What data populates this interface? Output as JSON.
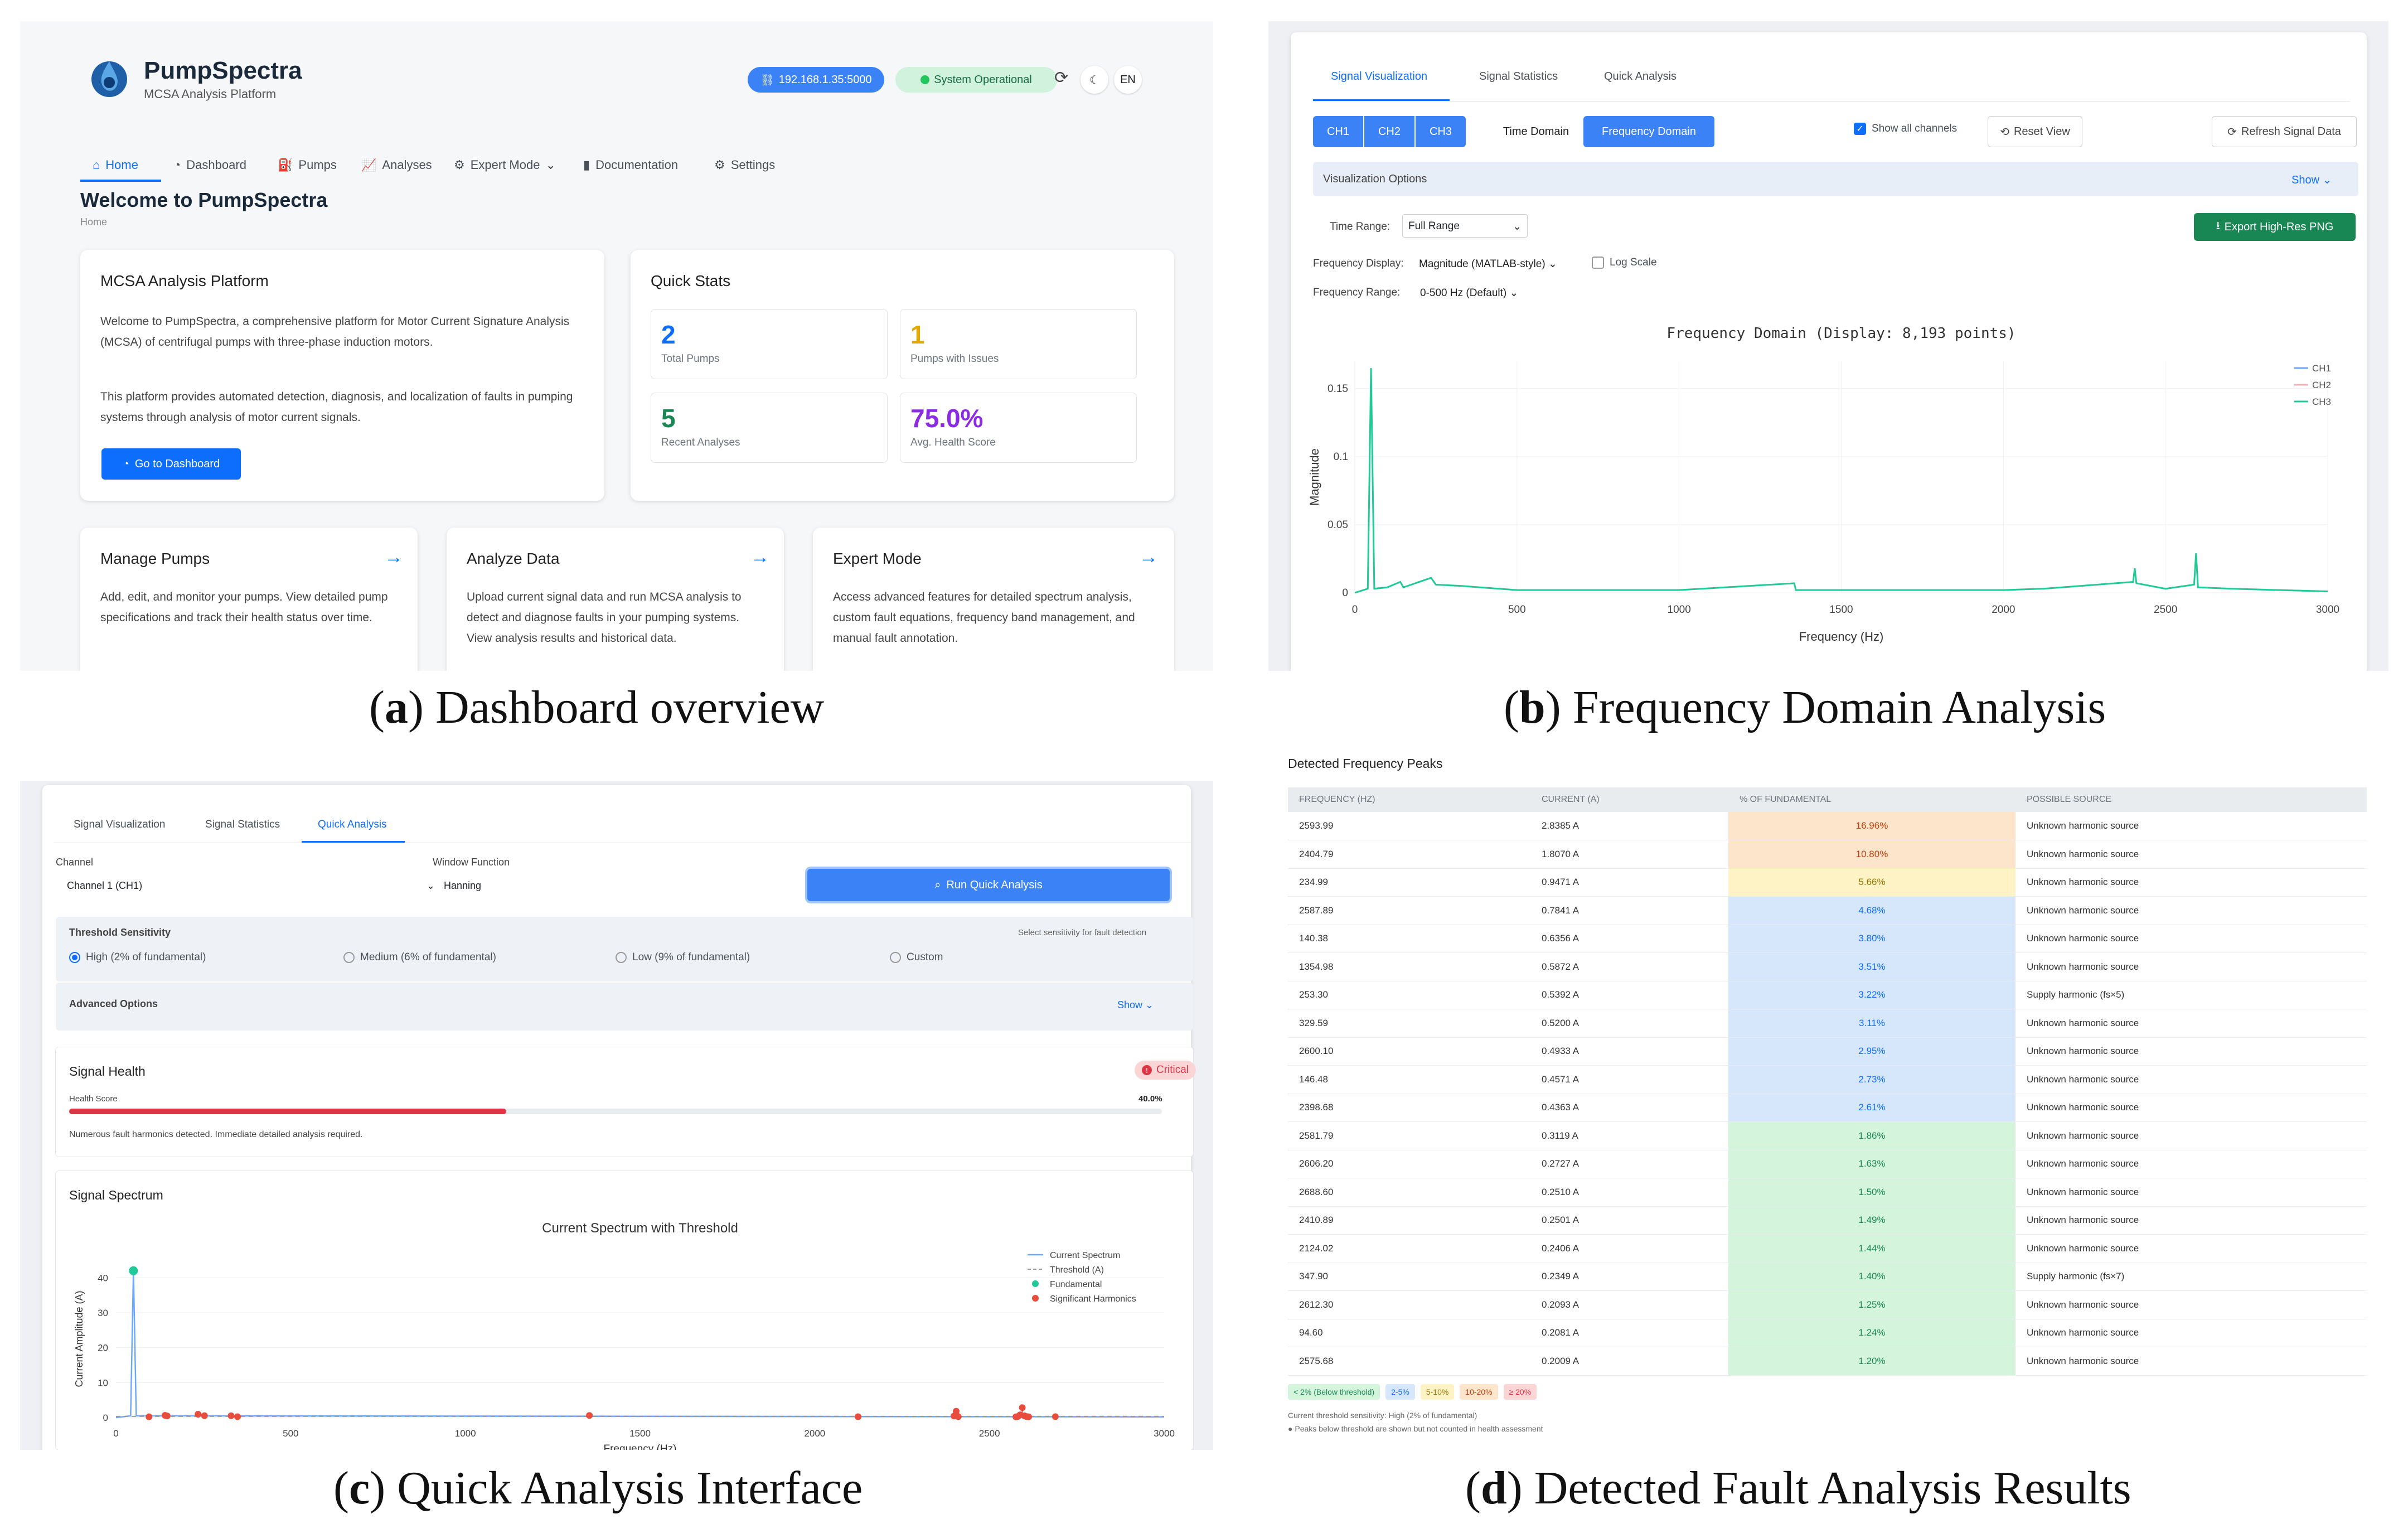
{
  "captions": {
    "a": {
      "letter": "a",
      "text": "Dashboard overview"
    },
    "b": {
      "letter": "b",
      "text": "Frequency Domain Analysis"
    },
    "c": {
      "letter": "c",
      "text": "Quick Analysis Interface"
    },
    "d": {
      "letter": "d",
      "text": "Detected Fault Analysis Results"
    }
  },
  "dashboard": {
    "brand": {
      "name": "PumpSpectra",
      "subtitle": "MCSA Analysis Platform"
    },
    "ip_badge": "192.168.1.35:5000",
    "status_badge": "System Operational",
    "lang": "EN",
    "nav": [
      "Home",
      "Dashboard",
      "Pumps",
      "Analyses",
      "Expert Mode",
      "Documentation",
      "Settings"
    ],
    "welcome_title": "Welcome to PumpSpectra",
    "breadcrumb": "Home",
    "platform_card": {
      "title": "MCSA Analysis Platform",
      "p1": "Welcome to PumpSpectra, a comprehensive platform for Motor Current Signature Analysis (MCSA) of centrifugal pumps with three-phase induction motors.",
      "p2": "This platform provides automated detection, diagnosis, and localization of faults in pumping systems through analysis of motor current signals.",
      "button": "Go to Dashboard"
    },
    "quick_stats": {
      "title": "Quick Stats",
      "items": [
        {
          "value": "2",
          "label": "Total Pumps",
          "color": "#0d6efd"
        },
        {
          "value": "1",
          "label": "Pumps with Issues",
          "color": "#e0a800"
        },
        {
          "value": "5",
          "label": "Recent Analyses",
          "color": "#198754"
        },
        {
          "value": "75.0%",
          "label": "Avg. Health Score",
          "color": "#8b2be2"
        }
      ]
    },
    "features": [
      {
        "title": "Manage Pumps",
        "text": "Add, edit, and monitor your pumps. View detailed pump specifications and track their health status over time."
      },
      {
        "title": "Analyze Data",
        "text": "Upload current signal data and run MCSA analysis to detect and diagnose faults in your pumping systems. View analysis results and historical data."
      },
      {
        "title": "Expert Mode",
        "text": "Access advanced features for detailed spectrum analysis, custom fault equations, frequency band management, and manual fault annotation."
      }
    ]
  },
  "freq": {
    "tabs": [
      "Signal Visualization",
      "Signal Statistics",
      "Quick Analysis"
    ],
    "channels": [
      "CH1",
      "CH2",
      "CH3"
    ],
    "domain_time": "Time Domain",
    "domain_freq": "Frequency Domain",
    "show_all": "Show all channels",
    "reset": "Reset View",
    "refresh": "Refresh Signal Data",
    "vis_options": "Visualization Options",
    "show": "Show",
    "time_range_label": "Time Range:",
    "time_range_value": "Full Range",
    "export": "Export High-Res PNG",
    "freq_display_label": "Frequency Display:",
    "freq_display_value": "Magnitude (MATLAB-style)",
    "log_scale": "Log Scale",
    "freq_range_label": "Frequency Range:",
    "freq_range_value": "0-500 Hz (Default)"
  },
  "quick": {
    "tabs": [
      "Signal Visualization",
      "Signal Statistics",
      "Quick Analysis"
    ],
    "channel_label": "Channel",
    "channel_value": "Channel 1 (CH1)",
    "window_label": "Window Function",
    "window_value": "Hanning",
    "run": "Run Quick Analysis",
    "threshold_title": "Threshold Sensitivity",
    "threshold_hint": "Select sensitivity for fault detection",
    "thresholds": [
      "High (2% of fundamental)",
      "Medium (6% of fundamental)",
      "Low (9% of fundamental)",
      "Custom"
    ],
    "advanced": "Advanced Options",
    "show": "Show",
    "health_title": "Signal Health",
    "critical": "Critical",
    "health_label": "Health Score",
    "health_value": "40.0%",
    "health_fraction": 0.4,
    "health_msg": "Numerous fault harmonics detected. Immediate detailed analysis required.",
    "spectrum_title": "Signal Spectrum"
  },
  "peaks": {
    "title": "Detected Frequency Peaks",
    "headers": [
      "FREQUENCY (HZ)",
      "CURRENT (A)",
      "% OF FUNDAMENTAL",
      "POSSIBLE SOURCE"
    ],
    "rows": [
      [
        "2593.99",
        "2.8385 A",
        "16.96%",
        "Unknown harmonic source"
      ],
      [
        "2404.79",
        "1.8070 A",
        "10.80%",
        "Unknown harmonic source"
      ],
      [
        "234.99",
        "0.9471 A",
        "5.66%",
        "Unknown harmonic source"
      ],
      [
        "2587.89",
        "0.7841 A",
        "4.68%",
        "Unknown harmonic source"
      ],
      [
        "140.38",
        "0.6356 A",
        "3.80%",
        "Unknown harmonic source"
      ],
      [
        "1354.98",
        "0.5872 A",
        "3.51%",
        "Unknown harmonic source"
      ],
      [
        "253.30",
        "0.5392 A",
        "3.22%",
        "Supply harmonic (fs×5)"
      ],
      [
        "329.59",
        "0.5200 A",
        "3.11%",
        "Unknown harmonic source"
      ],
      [
        "2600.10",
        "0.4933 A",
        "2.95%",
        "Unknown harmonic source"
      ],
      [
        "146.48",
        "0.4571 A",
        "2.73%",
        "Unknown harmonic source"
      ],
      [
        "2398.68",
        "0.4363 A",
        "2.61%",
        "Unknown harmonic source"
      ],
      [
        "2581.79",
        "0.3119 A",
        "1.86%",
        "Unknown harmonic source"
      ],
      [
        "2606.20",
        "0.2727 A",
        "1.63%",
        "Unknown harmonic source"
      ],
      [
        "2688.60",
        "0.2510 A",
        "1.50%",
        "Unknown harmonic source"
      ],
      [
        "2410.89",
        "0.2501 A",
        "1.49%",
        "Unknown harmonic source"
      ],
      [
        "2124.02",
        "0.2406 A",
        "1.44%",
        "Unknown harmonic source"
      ],
      [
        "347.90",
        "0.2349 A",
        "1.40%",
        "Supply harmonic (fs×7)"
      ],
      [
        "2612.30",
        "0.2093 A",
        "1.25%",
        "Unknown harmonic source"
      ],
      [
        "94.60",
        "0.2081 A",
        "1.24%",
        "Unknown harmonic source"
      ],
      [
        "2575.68",
        "0.2009 A",
        "1.20%",
        "Unknown harmonic source"
      ]
    ],
    "legend": [
      {
        "label": "< 2% (Below threshold)",
        "bg": "#d4f5dc",
        "fg": "#198754"
      },
      {
        "label": "2-5%",
        "bg": "#d6e6fb",
        "fg": "#0d6efd"
      },
      {
        "label": "5-10%",
        "bg": "#fdf3c4",
        "fg": "#997404"
      },
      {
        "label": "10-20%",
        "bg": "#fde5cc",
        "fg": "#c2410c"
      },
      {
        "label": "≥ 20%",
        "bg": "#fbd5d5",
        "fg": "#dc3545"
      }
    ],
    "note1": "Current threshold sensitivity: High (2% of fundamental)",
    "note2": "Peaks below threshold are shown but not counted in health assessment"
  },
  "chart_data": [
    {
      "type": "line",
      "title": "Frequency Domain (Display: 8,193 points)",
      "xlabel": "Frequency (Hz)",
      "ylabel": "Magnitude",
      "xlim": [
        0,
        3000
      ],
      "ylim": [
        0,
        0.17
      ],
      "xticks": [
        0,
        500,
        1000,
        1500,
        2000,
        2500,
        3000
      ],
      "yticks": [
        0,
        0.05,
        0.1,
        0.15
      ],
      "legend_position": "top-right",
      "series": [
        {
          "name": "CH1",
          "color": "#6ea8fe"
        },
        {
          "name": "CH2",
          "color": "#f1aeb5"
        },
        {
          "name": "CH3",
          "color": "#20c997",
          "x": [
            0,
            40,
            50,
            60,
            100,
            140,
            150,
            235,
            250,
            330,
            500,
            1000,
            1355,
            1360,
            2000,
            2124,
            2400,
            2405,
            2410,
            2500,
            2588,
            2594,
            2600,
            2700,
            3000
          ],
          "y": [
            0,
            0.003,
            0.165,
            0.003,
            0.004,
            0.008,
            0.004,
            0.011,
            0.006,
            0.005,
            0.002,
            0.002,
            0.007,
            0.002,
            0.002,
            0.003,
            0.008,
            0.018,
            0.007,
            0.003,
            0.006,
            0.029,
            0.004,
            0.003,
            0.001
          ]
        }
      ]
    },
    {
      "type": "line",
      "title": "Current Spectrum with Threshold",
      "xlabel": "Frequency (Hz)",
      "ylabel": "Current Amplitude (A)",
      "xlim": [
        0,
        3000
      ],
      "ylim": [
        0,
        45
      ],
      "xticks": [
        0,
        500,
        1000,
        1500,
        2000,
        2500,
        3000
      ],
      "yticks": [
        0,
        10,
        20,
        30,
        40
      ],
      "threshold": 0.34,
      "legend_position": "top-right",
      "legend": [
        "Current Spectrum",
        "Threshold (A)",
        "Fundamental",
        "Significant Harmonics"
      ],
      "fundamental": {
        "x": 50,
        "y": 42
      },
      "harmonics": [
        [
          94.6,
          0.21
        ],
        [
          140.38,
          0.64
        ],
        [
          146.48,
          0.46
        ],
        [
          234.99,
          0.95
        ],
        [
          253.3,
          0.54
        ],
        [
          329.59,
          0.52
        ],
        [
          347.9,
          0.23
        ],
        [
          1354.98,
          0.59
        ],
        [
          2124.02,
          0.24
        ],
        [
          2398.68,
          0.44
        ],
        [
          2404.79,
          1.81
        ],
        [
          2410.89,
          0.25
        ],
        [
          2575.68,
          0.2
        ],
        [
          2581.79,
          0.31
        ],
        [
          2587.89,
          0.78
        ],
        [
          2593.99,
          2.84
        ],
        [
          2600.1,
          0.49
        ],
        [
          2606.2,
          0.27
        ],
        [
          2612.3,
          0.21
        ],
        [
          2688.6,
          0.25
        ]
      ]
    }
  ]
}
